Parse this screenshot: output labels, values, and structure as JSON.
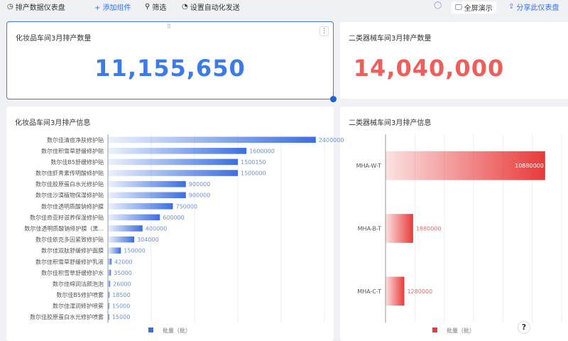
{
  "topbar": {
    "title": "排产数据仪表盘",
    "add": "+ 添加组件",
    "filter": "筛选",
    "auto": "设置自动化发送",
    "fullscreen": "全屏演示",
    "share": "分享此仪表盘"
  },
  "kpis": [
    {
      "title": "化妆品车间3月排产数量",
      "value": "11,155,650",
      "color": "#3b7be8"
    },
    {
      "title": "二类器械车间3月排产数量",
      "value": "14,040,000",
      "color": "#ee5f5b"
    }
  ],
  "chart_data": [
    {
      "type": "bar",
      "orientation": "horizontal",
      "title": "化妆品车间3月排产信息",
      "legend": "批量（批）",
      "legend_position": "bottom",
      "color": "#3b6fe0",
      "xlim": [
        0,
        2500000
      ],
      "grid": true,
      "categories": [
        "数尔佳清痘净肤修护贴",
        "数尔佳积雪草舒缓修护贴",
        "数尔佳B5舒缓修护贴",
        "数尔佳虾青素传明酸修护贴",
        "数尔佳胶原蛋白水光修护贴",
        "数尔佳沙漠植物保湿修护贴",
        "数尔佳透明质酸钠修护膜",
        "数尔佳奇亚籽滋养保湿修护贴",
        "数尔佳透明质酸钠修护膜（黑...",
        "数尔佳依克多因紧致修护贴",
        "数尔佳双肽舒缓修护面膜",
        "数尔佳积雪草舒缓修护乳液",
        "数尔佳积雪草舒缓修护水",
        "数尔佳绵润洁颜泡泡",
        "数尔佳B5修护喷雾",
        "数尔佳湿润修护喷雾",
        "数尔佳胶原蛋白水光修护喷雾"
      ],
      "values": [
        2400000,
        1600000,
        1500150,
        1500000,
        900000,
        900000,
        750000,
        600000,
        400000,
        304000,
        150000,
        42000,
        35000,
        26000,
        18500,
        15000,
        15000
      ]
    },
    {
      "type": "bar",
      "orientation": "horizontal",
      "title": "二类器械车间3月排产信息",
      "legend": "批量（批）",
      "legend_position": "bottom",
      "color": "#e83a3a",
      "xlim": [
        0,
        12000000
      ],
      "grid": true,
      "categories": [
        "MHA-W-T",
        "MHA-B-T",
        "MHA-C-T"
      ],
      "values": [
        10880000,
        1880000,
        1280000
      ]
    }
  ],
  "help": "?"
}
